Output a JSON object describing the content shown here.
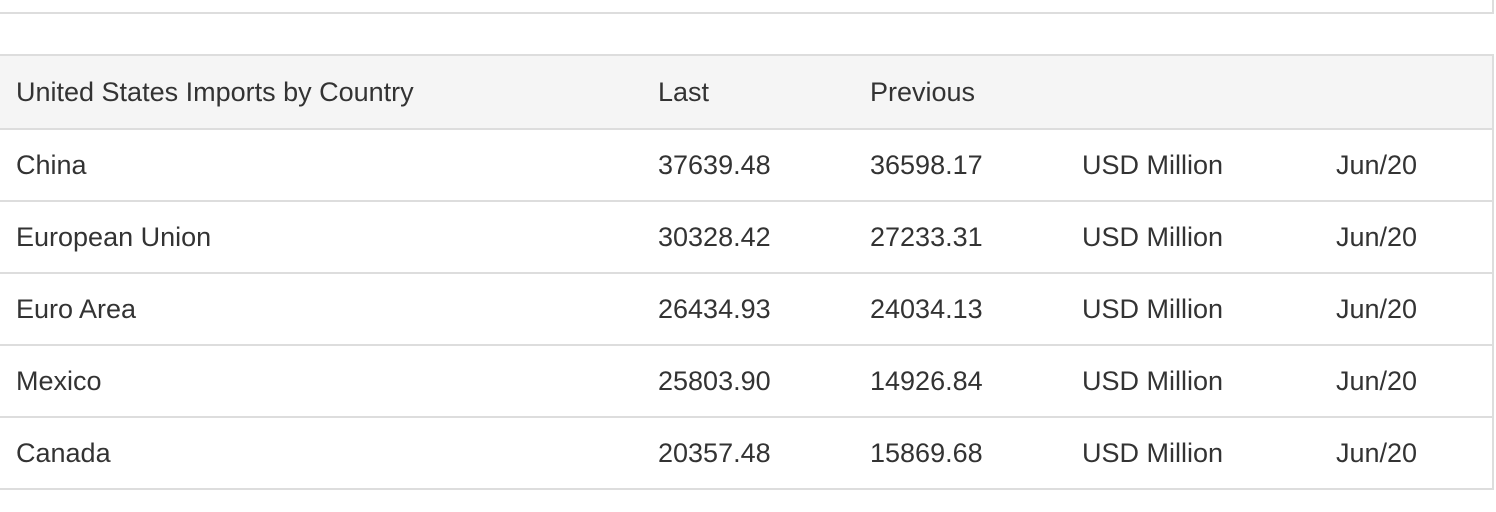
{
  "table": {
    "headers": [
      "United States Imports by Country",
      "Last",
      "Previous",
      "",
      ""
    ],
    "rows": [
      {
        "country": "China",
        "last": "37639.48",
        "previous": "36598.17",
        "unit": "USD Million",
        "date": "Jun/20"
      },
      {
        "country": "European Union",
        "last": "30328.42",
        "previous": "27233.31",
        "unit": "USD Million",
        "date": "Jun/20"
      },
      {
        "country": "Euro Area",
        "last": "26434.93",
        "previous": "24034.13",
        "unit": "USD Million",
        "date": "Jun/20"
      },
      {
        "country": "Mexico",
        "last": "25803.90",
        "previous": "14926.84",
        "unit": "USD Million",
        "date": "Jun/20"
      },
      {
        "country": "Canada",
        "last": "20357.48",
        "previous": "15869.68",
        "unit": "USD Million",
        "date": "Jun/20"
      }
    ]
  }
}
